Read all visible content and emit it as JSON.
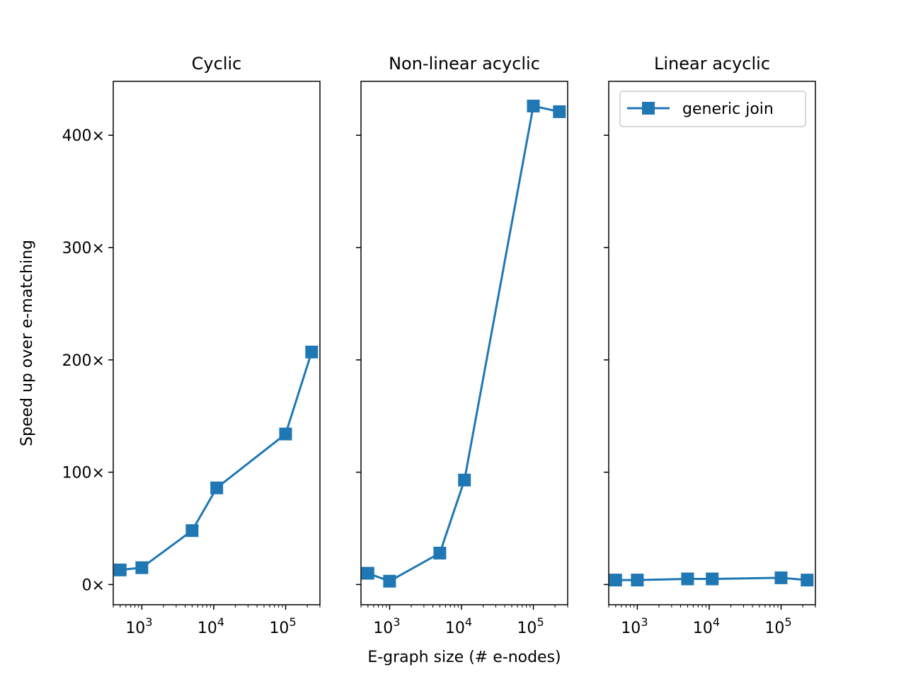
{
  "colors": {
    "series": "#1f77b4",
    "axes": "#000000",
    "background": "#ffffff"
  },
  "figure": {
    "ylabel": "Speed up over e-matching",
    "xlabel": "E-graph size (# e-nodes)",
    "y_tick_labels": [
      "0×",
      "100×",
      "200×",
      "300×",
      "400×"
    ],
    "x_tick_labels": [
      {
        "base": "10",
        "exp": "3"
      },
      {
        "base": "10",
        "exp": "4"
      },
      {
        "base": "10",
        "exp": "5"
      }
    ]
  },
  "chart_data": [
    {
      "type": "line",
      "title": "Cyclic",
      "xscale": "log",
      "xlim": [
        400,
        300000
      ],
      "ylim": [
        -18,
        448
      ],
      "x": [
        500,
        1000,
        5000,
        11000,
        100000,
        230000
      ],
      "series": [
        {
          "name": "generic join",
          "marker": "square",
          "values": [
            13,
            15,
            48,
            86,
            134,
            207
          ]
        }
      ]
    },
    {
      "type": "line",
      "title": "Non-linear acyclic",
      "xscale": "log",
      "xlim": [
        400,
        300000
      ],
      "ylim": [
        -18,
        448
      ],
      "x": [
        500,
        1000,
        5000,
        11000,
        100000,
        230000
      ],
      "series": [
        {
          "name": "generic join",
          "marker": "square",
          "values": [
            10,
            3,
            28,
            93,
            426,
            421
          ]
        }
      ]
    },
    {
      "type": "line",
      "title": "Linear acyclic",
      "xscale": "log",
      "xlim": [
        400,
        300000
      ],
      "ylim": [
        -18,
        448
      ],
      "x": [
        500,
        1000,
        5000,
        11000,
        100000,
        230000
      ],
      "legend": {
        "position": "top-right",
        "entries": [
          "generic join"
        ]
      },
      "series": [
        {
          "name": "generic join",
          "marker": "square",
          "values": [
            4,
            4,
            5,
            5,
            6,
            4
          ]
        }
      ]
    }
  ]
}
